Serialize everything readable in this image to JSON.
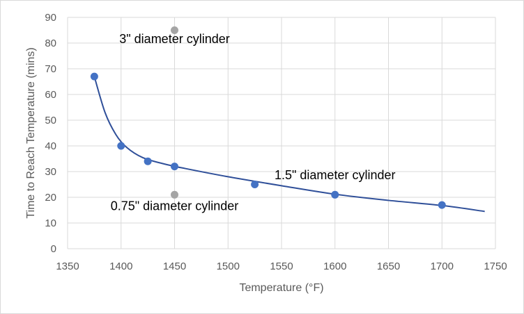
{
  "chart_data": {
    "type": "scatter",
    "xlabel": "Temperature (°F)",
    "ylabel": "Time to Reach Temperature (mins)",
    "xlim": [
      1350,
      1750
    ],
    "ylim": [
      0,
      90
    ],
    "x_ticks": [
      1350,
      1400,
      1450,
      1500,
      1550,
      1600,
      1650,
      1700,
      1750
    ],
    "y_ticks": [
      0,
      10,
      20,
      30,
      40,
      50,
      60,
      70,
      80,
      90
    ],
    "grid": true,
    "legend": "none",
    "series": [
      {
        "color": "#4472c4",
        "points": [
          {
            "x": 1375,
            "y": 67
          },
          {
            "x": 1400,
            "y": 40
          },
          {
            "x": 1425,
            "y": 34
          },
          {
            "x": 1450,
            "y": 32
          },
          {
            "x": 1525,
            "y": 25
          },
          {
            "x": 1600,
            "y": 21
          },
          {
            "x": 1700,
            "y": 17
          }
        ],
        "trendline": {
          "color": "#2f4f99",
          "points": [
            {
              "x": 1375,
              "y": 67
            },
            {
              "x": 1385,
              "y": 53
            },
            {
              "x": 1395,
              "y": 44.5
            },
            {
              "x": 1405,
              "y": 39.5
            },
            {
              "x": 1420,
              "y": 35.5
            },
            {
              "x": 1440,
              "y": 33
            },
            {
              "x": 1460,
              "y": 31.2
            },
            {
              "x": 1500,
              "y": 28
            },
            {
              "x": 1550,
              "y": 24.5
            },
            {
              "x": 1600,
              "y": 21.2
            },
            {
              "x": 1650,
              "y": 18.8
            },
            {
              "x": 1700,
              "y": 16.8
            },
            {
              "x": 1740,
              "y": 14.5
            }
          ]
        }
      },
      {
        "color": "#a5a5a5",
        "points": [
          {
            "x": 1450,
            "y": 85
          },
          {
            "x": 1450,
            "y": 21
          }
        ]
      }
    ],
    "annotations": [
      {
        "text": "3\" diameter cylinder",
        "x": 1450,
        "y": 80
      },
      {
        "text": "1.5\" diameter cylinder",
        "x": 1600,
        "y": 27
      },
      {
        "text": "0.75\" diameter cylinder",
        "x": 1450,
        "y": 15
      }
    ]
  }
}
